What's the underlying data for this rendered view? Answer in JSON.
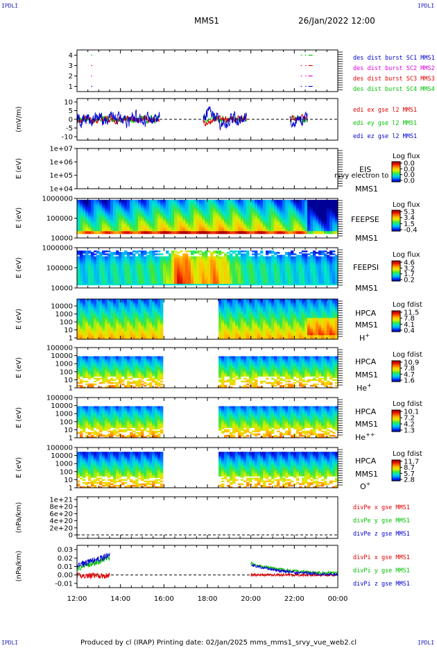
{
  "corner_label": "IPDLI",
  "header": {
    "spacecraft": "MMS1",
    "datetime": "26/Jan/2022 12:00"
  },
  "footer": {
    "text": "Produced by cl (IRAP)   Printing date: 02/Jan/2025   mms_mms1_srvy_vue_web2.cl"
  },
  "colors": {
    "red": "#e00000",
    "green": "#00c000",
    "blue": "#0000d0",
    "magenta": "#e000e0"
  },
  "chart_data": {
    "type": "multi-panel time series",
    "x_ticks": [
      "12:00",
      "14:00",
      "16:00",
      "18:00",
      "20:00",
      "22:00",
      "00:00"
    ],
    "panels": [
      {
        "id": "des",
        "type": "scatter",
        "ylabel": "",
        "y_ticks": [
          "1",
          "2",
          "3",
          "4"
        ],
        "series": [
          {
            "name": "des dist burst SC1 MMS1",
            "color": "#0000d0",
            "y": 1,
            "x_hours": [
              12.65,
              22.3,
              22.5,
              22.65
            ]
          },
          {
            "name": "des dist burst SC2 MMS2",
            "color": "#e000e0",
            "y": 2,
            "x_hours": [
              12.65,
              22.3,
              22.5,
              22.65
            ]
          },
          {
            "name": "des dist burst SC3 MMS3",
            "color": "#e00000",
            "y": 3,
            "x_hours": [
              12.65,
              22.3,
              22.5,
              22.65
            ]
          },
          {
            "name": "des dist burst SC4 MMS4",
            "color": "#00c000",
            "y": 4,
            "x_hours": [
              12.65,
              22.3,
              22.5,
              22.65
            ]
          }
        ]
      },
      {
        "id": "edi",
        "type": "line",
        "ylabel": "(mV/m)",
        "y_ticks": [
          "-10",
          "-5",
          "0",
          "5",
          "10"
        ],
        "ylim": [
          -12,
          12
        ],
        "series": [
          {
            "name": "edi ex gse l2 MMS1",
            "color": "#e00000"
          },
          {
            "name": "edi ey gse l2 MMS1",
            "color": "#00c000"
          },
          {
            "name": "edi ez gse l2 MMS1",
            "color": "#0000d0"
          }
        ],
        "segments_hours": [
          [
            12.0,
            15.8
          ],
          [
            17.8,
            19.8
          ],
          [
            21.8,
            22.6
          ]
        ]
      },
      {
        "id": "eis",
        "type": "heatmap",
        "ylabel": "E (eV)",
        "y_ticks": [
          "1e+04",
          "1e+05",
          "1e+06",
          "1e+07"
        ],
        "labels": [
          "EIS",
          "MMS1"
        ],
        "overlay_label": "rsvy electron to",
        "cbar_title": "Log flux",
        "cbar_ticks": [
          "0.0",
          "0.0",
          "0.0",
          "0.0"
        ]
      },
      {
        "id": "feepse",
        "type": "heatmap",
        "ylabel": "E (eV)",
        "y_ticks": [
          "10000",
          "100000",
          "1000000"
        ],
        "labels": [
          "FEEPSE",
          "MMS1"
        ],
        "cbar_title": "Log flux",
        "cbar_ticks": [
          "5.3",
          "3.4",
          "1.5",
          "-0.4"
        ]
      },
      {
        "id": "feepsi",
        "type": "heatmap",
        "ylabel": "E (eV)",
        "y_ticks": [
          "10000",
          "100000",
          "1000000"
        ],
        "labels": [
          "FEEPSI",
          "MMS1"
        ],
        "cbar_title": "Log flux",
        "cbar_ticks": [
          "4.6",
          "3.2",
          "1.7",
          "0.2"
        ]
      },
      {
        "id": "hpca-h",
        "type": "heatmap",
        "ylabel": "E (eV)",
        "y_ticks": [
          "1",
          "10",
          "100",
          "1000",
          "10000"
        ],
        "labels": [
          "HPCA",
          "MMS1"
        ],
        "species": "H",
        "sup": "+",
        "cbar_title": "Log fdist",
        "cbar_ticks": [
          "11.5",
          "7.8",
          "4.1",
          "0.4"
        ]
      },
      {
        "id": "hpca-he",
        "type": "heatmap",
        "ylabel": "E (eV)",
        "y_ticks": [
          "1",
          "10",
          "100",
          "1000",
          "10000",
          "100000"
        ],
        "labels": [
          "HPCA",
          "MMS1"
        ],
        "species": "He",
        "sup": "+",
        "cbar_title": "Log fdist",
        "cbar_ticks": [
          "10.9",
          "7.8",
          "4.7",
          "1.6"
        ]
      },
      {
        "id": "hpca-he2",
        "type": "heatmap",
        "ylabel": "E (eV)",
        "y_ticks": [
          "1",
          "10",
          "100",
          "1000",
          "10000",
          "100000"
        ],
        "labels": [
          "HPCA",
          "MMS1"
        ],
        "species": "He",
        "sup": "++",
        "cbar_title": "Log fdist",
        "cbar_ticks": [
          "10.1",
          "7.2",
          "4.2",
          "1.3"
        ]
      },
      {
        "id": "hpca-o",
        "type": "heatmap",
        "ylabel": "E (eV)",
        "y_ticks": [
          "1",
          "10",
          "100",
          "1000",
          "10000",
          "100000"
        ],
        "labels": [
          "HPCA",
          "MMS1"
        ],
        "species": "O",
        "sup": "+",
        "cbar_title": "Log fdist",
        "cbar_ticks": [
          "11.7",
          "8.7",
          "5.7",
          "2.8"
        ]
      },
      {
        "id": "divpe",
        "type": "line",
        "ylabel": "(nPa/km)",
        "y_ticks": [
          "0",
          "2e+20",
          "4e+20",
          "6e+20",
          "8e+20",
          "1e+21"
        ],
        "series": [
          {
            "name": "divPe x gse MMS1",
            "color": "#e00000"
          },
          {
            "name": "divPe y gse MMS1",
            "color": "#00c000"
          },
          {
            "name": "divPe z gse MMS1",
            "color": "#0000d0"
          }
        ]
      },
      {
        "id": "divpi",
        "type": "line",
        "ylabel": "(nPa/km)",
        "y_ticks": [
          "-0.01",
          "0.00",
          "0.01",
          "0.02",
          "0.03"
        ],
        "ylim": [
          -0.015,
          0.035
        ],
        "series": [
          {
            "name": "divPi x gse MMS1",
            "color": "#e00000"
          },
          {
            "name": "divPi y gse MMS1",
            "color": "#00c000"
          },
          {
            "name": "divPi z gse MMS1",
            "color": "#0000d0"
          }
        ],
        "segments_hours": [
          [
            12.0,
            13.5
          ],
          [
            20.0,
            24.0
          ]
        ]
      }
    ],
    "hpca_gap_hours": [
      16.0,
      18.5
    ]
  }
}
